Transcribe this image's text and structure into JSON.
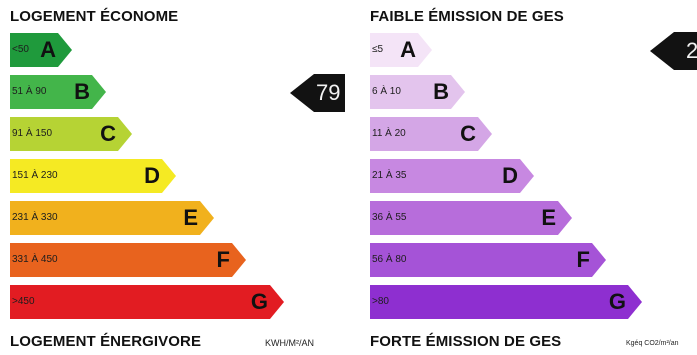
{
  "energy": {
    "title_top": "LOGEMENT ÉCONOME",
    "title_bottom": "LOGEMENT ÉNERGIVORE",
    "unit": "KWH/M²/AN",
    "value": "79",
    "classes": [
      {
        "label": "<50",
        "letter": "A",
        "color": "#1f9a3c"
      },
      {
        "label": "51 À 90",
        "letter": "B",
        "color": "#43b54a"
      },
      {
        "label": "91 À 150",
        "letter": "C",
        "color": "#b6d334"
      },
      {
        "label": "151 À 230",
        "letter": "D",
        "color": "#f5ea23"
      },
      {
        "label": "231 À 330",
        "letter": "E",
        "color": "#f1b11d"
      },
      {
        "label": "331 À 450",
        "letter": "F",
        "color": "#e8631e"
      },
      {
        "label": ">450",
        "letter": "G",
        "color": "#e21c22"
      }
    ]
  },
  "ges": {
    "title_top": "FAIBLE ÉMISSION DE GES",
    "title_bottom": "FORTE ÉMISSION DE GES",
    "unit": "Kgéq CO2/m²/an",
    "value": "2",
    "classes": [
      {
        "label": "≤5",
        "letter": "A",
        "color": "#f4e4f7"
      },
      {
        "label": "6 À 10",
        "letter": "B",
        "color": "#e3c4ed"
      },
      {
        "label": "11 À 20",
        "letter": "C",
        "color": "#d4a6e6"
      },
      {
        "label": "21 À 35",
        "letter": "D",
        "color": "#c788e1"
      },
      {
        "label": "36 À 55",
        "letter": "E",
        "color": "#b76ddb"
      },
      {
        "label": "56 À 80",
        "letter": "F",
        "color": "#a553d7"
      },
      {
        "label": ">80",
        "letter": "G",
        "color": "#8e2fd0"
      }
    ]
  }
}
